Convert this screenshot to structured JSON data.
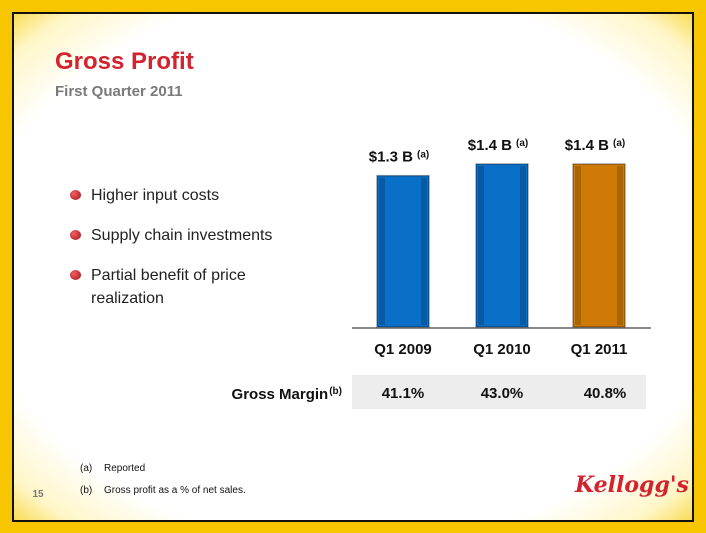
{
  "header": {
    "title": "Gross Profit",
    "subtitle": "First Quarter 2011"
  },
  "bullets": [
    "Higher input costs",
    "Supply chain investments",
    "Partial benefit of price realization"
  ],
  "chart_data": {
    "type": "bar",
    "categories": [
      "Q1 2009",
      "Q1 2010",
      "Q1 2011"
    ],
    "values": [
      1.3,
      1.4,
      1.4
    ],
    "value_labels": [
      "$1.3 B",
      "$1.4 B",
      "$1.4 B"
    ],
    "value_notes": [
      "(a)",
      "(a)",
      "(a)"
    ],
    "colors": [
      "#0a6fc6",
      "#0a6fc6",
      "#cf7a06"
    ],
    "margin": {
      "label": "Gross Margin",
      "note": "(b)",
      "values": [
        41.1,
        43.0,
        40.8
      ],
      "value_labels": [
        "41.1%",
        "43.0%",
        "40.8%"
      ]
    }
  },
  "footnotes": [
    {
      "mark": "(a)",
      "text": "Reported"
    },
    {
      "mark": "(b)",
      "text": "Gross profit as a % of net sales."
    }
  ],
  "page_number": "15",
  "logo": "Kellogg's"
}
